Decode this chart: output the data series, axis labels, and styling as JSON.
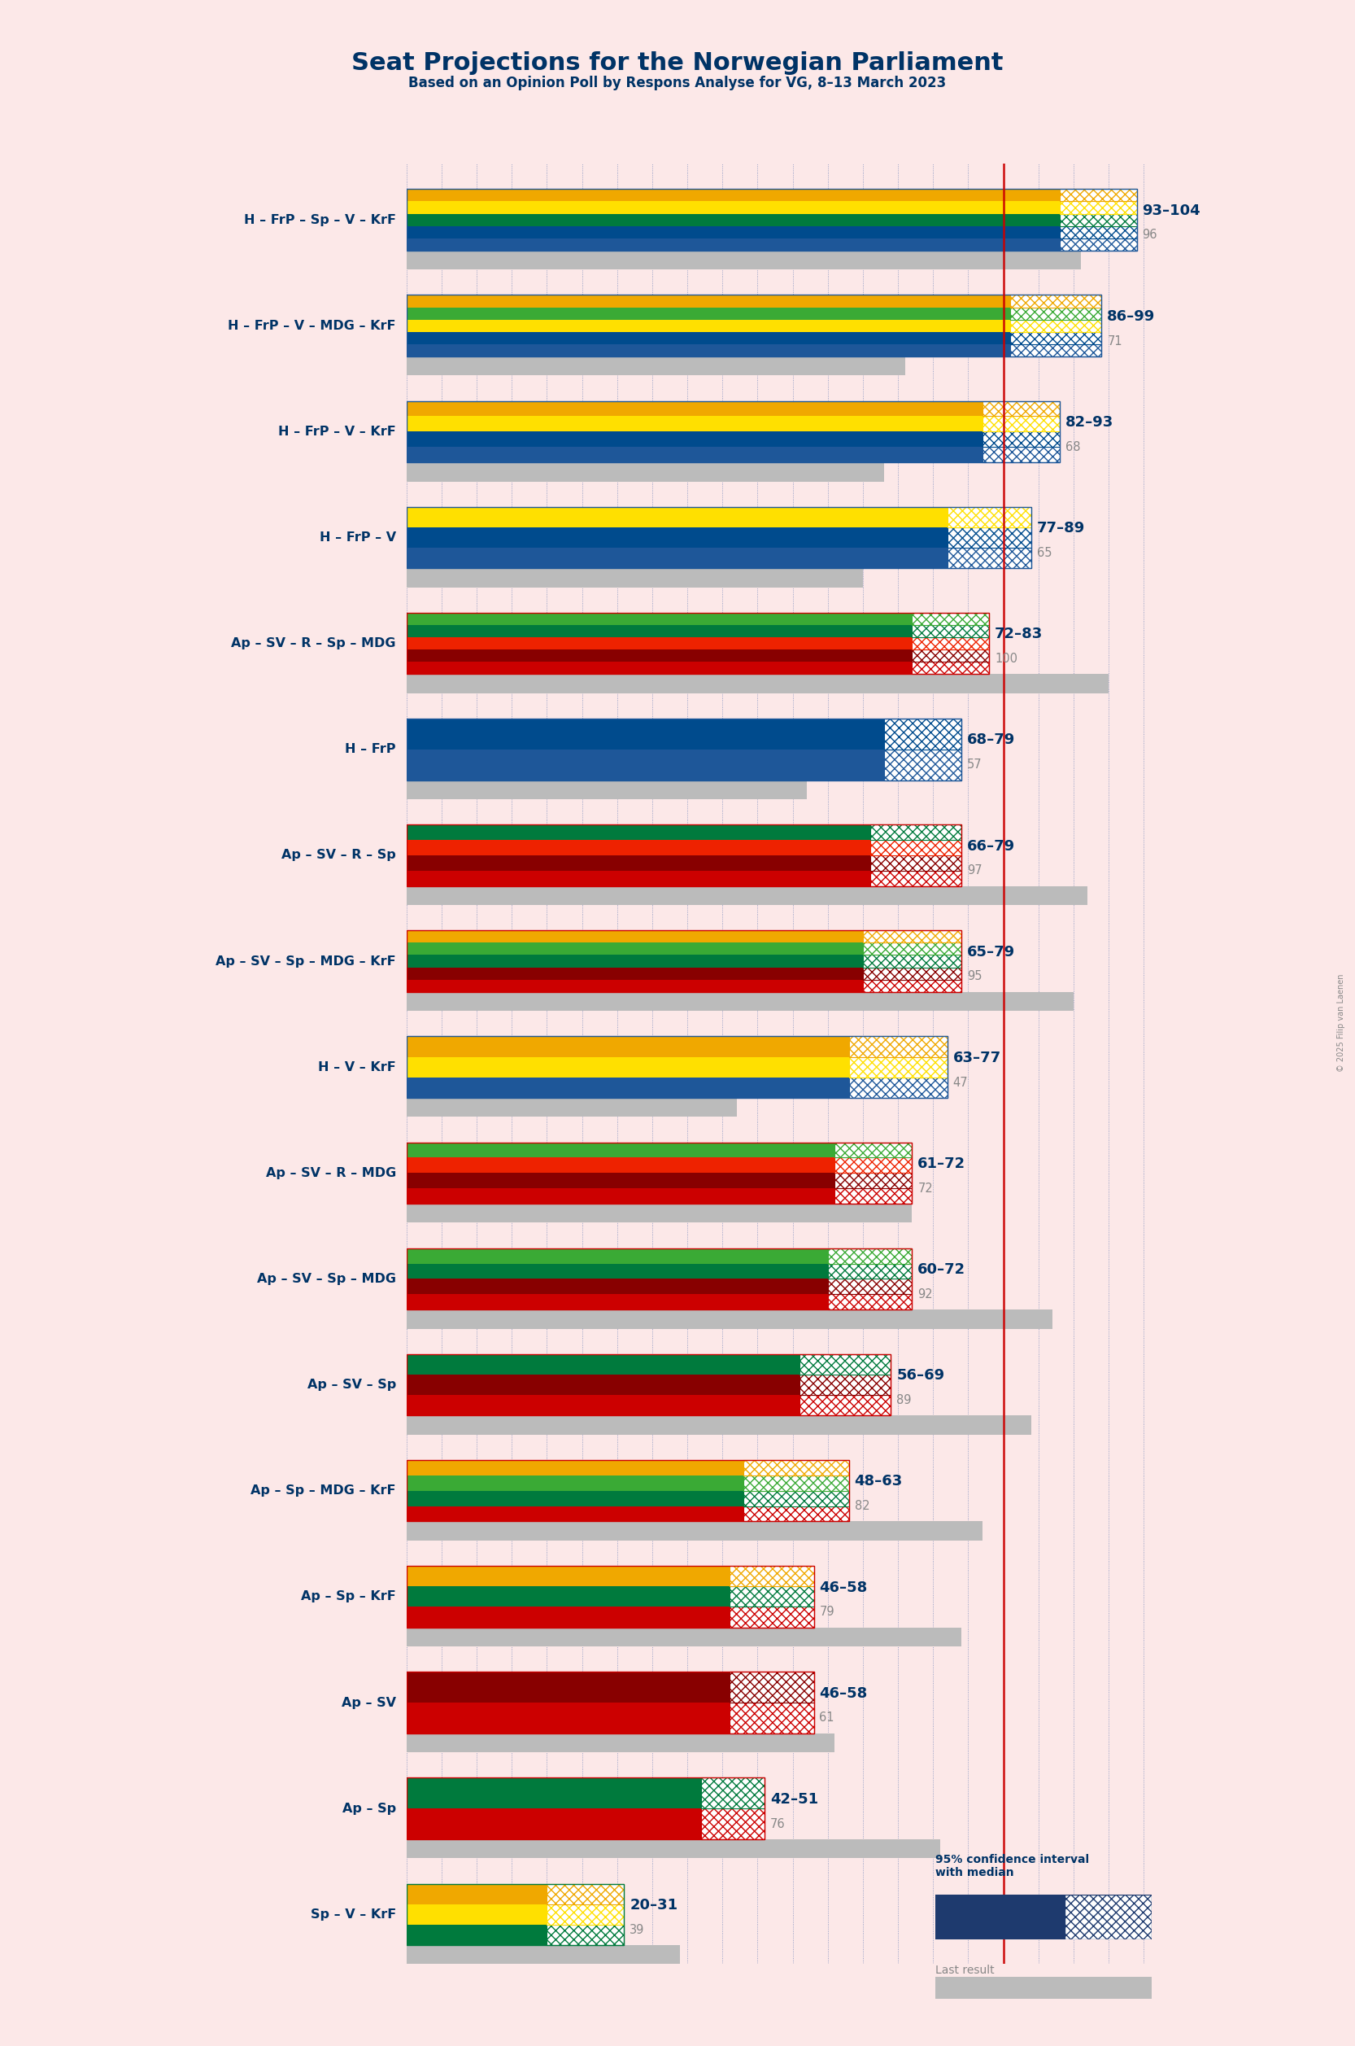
{
  "title": "Seat Projections for the Norwegian Parliament",
  "subtitle": "Based on an Opinion Poll by Respons Analyse for VG, 8–13 March 2023",
  "copyright": "© 2025 Filip van Laenen",
  "background_color": "#fce8e8",
  "majority_line": 85,
  "x_max": 110,
  "coalitions": [
    {
      "label": "H – FrP – Sp – V – KrF",
      "range_low": 93,
      "range_high": 104,
      "median": 96,
      "parties": [
        "H",
        "FrP",
        "Sp",
        "V",
        "KrF"
      ],
      "underline": false
    },
    {
      "label": "H – FrP – V – MDG – KrF",
      "range_low": 86,
      "range_high": 99,
      "median": 71,
      "parties": [
        "H",
        "FrP",
        "V",
        "MDG",
        "KrF"
      ],
      "underline": false
    },
    {
      "label": "H – FrP – V – KrF",
      "range_low": 82,
      "range_high": 93,
      "median": 68,
      "parties": [
        "H",
        "FrP",
        "V",
        "KrF"
      ],
      "underline": false
    },
    {
      "label": "H – FrP – V",
      "range_low": 77,
      "range_high": 89,
      "median": 65,
      "parties": [
        "H",
        "FrP",
        "V"
      ],
      "underline": false
    },
    {
      "label": "Ap – SV – R – Sp – MDG",
      "range_low": 72,
      "range_high": 83,
      "median": 100,
      "parties": [
        "Ap",
        "SV",
        "R",
        "Sp",
        "MDG"
      ],
      "underline": false
    },
    {
      "label": "H – FrP",
      "range_low": 68,
      "range_high": 79,
      "median": 57,
      "parties": [
        "H",
        "FrP"
      ],
      "underline": false
    },
    {
      "label": "Ap – SV – R – Sp",
      "range_low": 66,
      "range_high": 79,
      "median": 97,
      "parties": [
        "Ap",
        "SV",
        "R",
        "Sp"
      ],
      "underline": false
    },
    {
      "label": "Ap – SV – Sp – MDG – KrF",
      "range_low": 65,
      "range_high": 79,
      "median": 95,
      "parties": [
        "Ap",
        "SV",
        "Sp",
        "MDG",
        "KrF"
      ],
      "underline": false
    },
    {
      "label": "H – V – KrF",
      "range_low": 63,
      "range_high": 77,
      "median": 47,
      "parties": [
        "H",
        "V",
        "KrF"
      ],
      "underline": false
    },
    {
      "label": "Ap – SV – R – MDG",
      "range_low": 61,
      "range_high": 72,
      "median": 72,
      "parties": [
        "Ap",
        "SV",
        "R",
        "MDG"
      ],
      "underline": false
    },
    {
      "label": "Ap – SV – Sp – MDG",
      "range_low": 60,
      "range_high": 72,
      "median": 92,
      "parties": [
        "Ap",
        "SV",
        "Sp",
        "MDG"
      ],
      "underline": false
    },
    {
      "label": "Ap – SV – Sp",
      "range_low": 56,
      "range_high": 69,
      "median": 89,
      "parties": [
        "Ap",
        "SV",
        "Sp"
      ],
      "underline": false
    },
    {
      "label": "Ap – Sp – MDG – KrF",
      "range_low": 48,
      "range_high": 63,
      "median": 82,
      "parties": [
        "Ap",
        "Sp",
        "MDG",
        "KrF"
      ],
      "underline": false
    },
    {
      "label": "Ap – Sp – KrF",
      "range_low": 46,
      "range_high": 58,
      "median": 79,
      "parties": [
        "Ap",
        "Sp",
        "KrF"
      ],
      "underline": false
    },
    {
      "label": "Ap – SV",
      "range_low": 46,
      "range_high": 58,
      "median": 61,
      "parties": [
        "Ap",
        "SV"
      ],
      "underline": true
    },
    {
      "label": "Ap – Sp",
      "range_low": 42,
      "range_high": 51,
      "median": 76,
      "parties": [
        "Ap",
        "Sp"
      ],
      "underline": false
    },
    {
      "label": "Sp – V – KrF",
      "range_low": 20,
      "range_high": 31,
      "median": 39,
      "parties": [
        "Sp",
        "V",
        "KrF"
      ],
      "underline": false
    }
  ],
  "party_colors": {
    "H": "#1e5799",
    "FrP": "#004b8d",
    "Sp": "#007a3d",
    "V": "#ffe000",
    "KrF": "#f0a800",
    "Ap": "#cc0000",
    "SV": "#880000",
    "R": "#ee2200",
    "MDG": "#3aaa35"
  },
  "gray_color": "#bbbbbb",
  "range_label_color": "#003366",
  "median_label_color": "#888888",
  "label_color": "#003366",
  "majority_color": "#cc0000",
  "grid_color": "#4466aa",
  "legend_ci_color": "#003366",
  "legend_last_color": "#888888"
}
